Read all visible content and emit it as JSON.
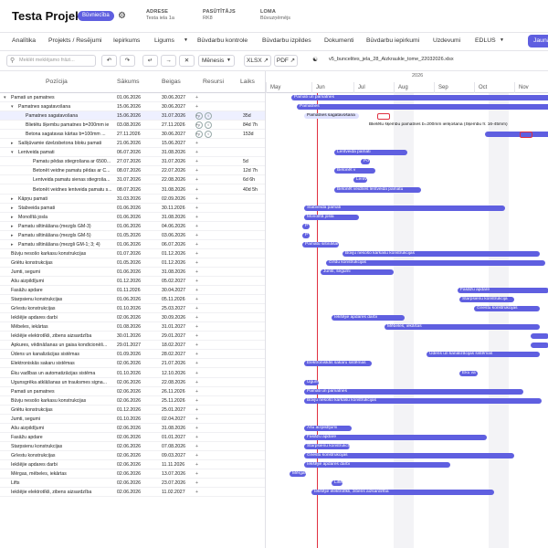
{
  "header": {
    "title": "Testa Projekts",
    "status": "Būvniecība",
    "adrese_label": "ADRESE",
    "adrese_value": "Testa iela 1a",
    "pasutitajs_label": "PASŪTĪTĀJS",
    "pasutitajs_value": "RK8",
    "loma_label": "LOMA",
    "loma_value": "Būvuzņēmējs"
  },
  "tabs": [
    "Analītika",
    "Projekts / Resējumi",
    "Iepirkums",
    "Ligums",
    "Būvdarbu kontrole",
    "Būvdarbu izpildes",
    "Dokumenti",
    "Būvdarbu iepirkumi",
    "Uzdevumi",
    "EDLUS",
    "Jaunās"
  ],
  "toolbar": {
    "search_placeholder": "Meklēt meklējamo frāzi...",
    "period": "Mēnesis",
    "xlsx": "XLSX",
    "pdf": "PDF",
    "file": "v5_buncelites_jela_28_Aizkraukle_tome_22032026.xlsx"
  },
  "columns": {
    "pozicija": "Pozīcija",
    "sakums": "Sākums",
    "beigas": "Beigas",
    "resursi": "Resursi",
    "laiks": "Laiks"
  },
  "timeline": {
    "year": "2026",
    "months": [
      "May",
      "Jun",
      "Jul",
      "Aug",
      "Sep",
      "Oct",
      "Nov"
    ]
  },
  "rows": [
    {
      "name": "Pamati un pamatnes",
      "start": "01.06.2026",
      "end": "30.06.2027",
      "res": "",
      "time": ""
    },
    {
      "name": "Pamatnes sagatavošana",
      "start": "15.06.2026",
      "end": "30.06.2027",
      "res": "",
      "time": ""
    },
    {
      "name": "Pamatnes sagatavošana",
      "start": "15.06.2026",
      "end": "31.07.2026",
      "res": "",
      "time": "35d"
    },
    {
      "name": "Blietētu šķembu pamatnes b=200mm ie",
      "start": "03.08.2026",
      "end": "27.11.2026",
      "res": "",
      "time": "84d 7h"
    },
    {
      "name": "Betona sagatavas kārtas b=100mm ...",
      "start": "27.11.2026",
      "end": "30.06.2027",
      "res": "",
      "time": "153d"
    },
    {
      "name": "Sašķūvamie dzelzsbetona bloku pamati",
      "start": "21.06.2026",
      "end": "15.06.2027",
      "res": "",
      "time": ""
    },
    {
      "name": "Lentveida pamati",
      "start": "06.07.2026",
      "end": "31.08.2026",
      "res": "",
      "time": ""
    },
    {
      "name": "Pamatu pēdas stiegrošana ar 6500...",
      "start": "27.07.2026",
      "end": "31.07.2026",
      "res": "",
      "time": "5d"
    },
    {
      "name": "Betonēt veidne pamatu pēdas ar C...",
      "start": "08.07.2026",
      "end": "22.07.2026",
      "res": "",
      "time": "12d 7h"
    },
    {
      "name": "Lentveida pamatu sienas stiegroša...",
      "start": "31.07.2026",
      "end": "22.08.2026",
      "res": "",
      "time": "6d 6h"
    },
    {
      "name": "Betonēt veidnes lentveida pamatu s...",
      "start": "08.07.2026",
      "end": "31.08.2026",
      "res": "",
      "time": "40d 5h"
    },
    {
      "name": "Kāpņu pamati",
      "start": "31.03.2026",
      "end": "02.09.2026",
      "res": "",
      "time": ""
    },
    {
      "name": "Stabveida pamati",
      "start": "01.06.2026",
      "end": "30.11.2026",
      "res": "",
      "time": ""
    },
    {
      "name": "Monolītā josla",
      "start": "01.06.2026",
      "end": "31.08.2026",
      "res": "",
      "time": ""
    },
    {
      "name": "Pamatu siltināšana (mezgls GM-3)",
      "start": "01.06.2026",
      "end": "04.06.2026",
      "res": "",
      "time": ""
    },
    {
      "name": "Pamatu siltināšana (mezgls GM-5)",
      "start": "01.05.2026",
      "end": "03.06.2026",
      "res": "",
      "time": ""
    },
    {
      "name": "Pamatu siltināšana (mezgli GM-1; 3; 4)",
      "start": "01.06.2026",
      "end": "06.07.2026",
      "res": "",
      "time": ""
    },
    {
      "name": "Būvju nesošo karkasu konstrukcijas",
      "start": "01.07.2026",
      "end": "01.12.2026",
      "res": "",
      "time": ""
    },
    {
      "name": "Griētu konstrukcijas",
      "start": "01.05.2026",
      "end": "01.12.2026",
      "res": "",
      "time": ""
    },
    {
      "name": "Jumti, segumi",
      "start": "01.06.2026",
      "end": "31.08.2026",
      "res": "",
      "time": ""
    },
    {
      "name": "Ašu aizpildījumi",
      "start": "01.12.2026",
      "end": "05.02.2027",
      "res": "",
      "time": ""
    },
    {
      "name": "Fasāžu apdare",
      "start": "01.11.2026",
      "end": "30.04.2027",
      "res": "",
      "time": ""
    },
    {
      "name": "Starpsienu konstrukcijas",
      "start": "01.06.2026",
      "end": "05.11.2026",
      "res": "",
      "time": ""
    },
    {
      "name": "Grīestu konstrukcijas",
      "start": "01.10.2026",
      "end": "25.03.2027",
      "res": "",
      "time": ""
    },
    {
      "name": "Iekšējie apdares darbi",
      "start": "02.06.2026",
      "end": "30.09.2026",
      "res": "",
      "time": ""
    },
    {
      "name": "Mēbeles, iekārtas",
      "start": "01.08.2026",
      "end": "31.01.2027",
      "res": "",
      "time": ""
    },
    {
      "name": "Iekšējie elektrotīkli, zibens aizsardzība",
      "start": "30.01.2026",
      "end": "29.01.2027",
      "res": "",
      "time": ""
    },
    {
      "name": "Apkures, vēdināšanas un gaisa kondicionēš...",
      "start": "29.01.2027",
      "end": "18.02.2027",
      "res": "",
      "time": ""
    },
    {
      "name": "Ūdens un kanalizācijas sistēmas",
      "start": "01.09.2026",
      "end": "28.02.2027",
      "res": "",
      "time": ""
    },
    {
      "name": "Elektroniskās sakaru sistēmas",
      "start": "02.06.2026",
      "end": "21.07.2026",
      "res": "",
      "time": ""
    },
    {
      "name": "Ēku vadības un automatizācijas sistēma",
      "start": "01.10.2026",
      "end": "12.10.2026",
      "res": "",
      "time": ""
    },
    {
      "name": "Ugunsgrēka atklāšanas un trauksmes signa...",
      "start": "02.06.2026",
      "end": "22.08.2026",
      "res": "",
      "time": ""
    },
    {
      "name": "Pamati un pamatnes",
      "start": "02.06.2026",
      "end": "26.11.2026",
      "res": "",
      "time": ""
    },
    {
      "name": "Būvju nesošo karkasu konstrukcijas",
      "start": "02.06.2026",
      "end": "25.11.2026",
      "res": "",
      "time": ""
    },
    {
      "name": "Griētu konstrukcijas",
      "start": "01.12.2026",
      "end": "25.01.2027",
      "res": "",
      "time": ""
    },
    {
      "name": "Jumti, segumi",
      "start": "01.10.2026",
      "end": "02.04.2027",
      "res": "",
      "time": ""
    },
    {
      "name": "Ašu aizpildījumi",
      "start": "02.06.2026",
      "end": "31.08.2026",
      "res": "",
      "time": ""
    },
    {
      "name": "Fasāžu apdare",
      "start": "02.06.2026",
      "end": "01.01.2027",
      "res": "",
      "time": ""
    },
    {
      "name": "Starpsienu konstrukcijas",
      "start": "02.06.2026",
      "end": "07.08.2026",
      "res": "",
      "time": ""
    },
    {
      "name": "Grīestu konstrukcijas",
      "start": "02.06.2026",
      "end": "09.03.2027",
      "res": "",
      "time": ""
    },
    {
      "name": "Iekšējie apdares darbi",
      "start": "02.06.2026",
      "end": "11.11.2026",
      "res": "",
      "time": ""
    },
    {
      "name": "Mērgas, mēbeles, iekārtas",
      "start": "02.06.2026",
      "end": "13.07.2026",
      "res": "",
      "time": ""
    },
    {
      "name": "Lifts",
      "start": "02.06.2026",
      "end": "23.07.2026",
      "res": "",
      "time": ""
    },
    {
      "name": "Iekšējie elektrotīkli, zibens aizsardzība",
      "start": "02.06.2026",
      "end": "11.02.2027",
      "res": "",
      "time": ""
    }
  ],
  "bars": [
    {
      "label": "Pamati un pamatnes"
    },
    {
      "label": "Pamatnes"
    },
    {
      "label": "Pamatnes sagatavošana"
    },
    {
      "label": "Blietētu šķembu pamatnes b=200mm ieriķošana (Šķembu fr. 16-45mm)"
    },
    {
      "label": ""
    },
    {
      "label": ""
    },
    {
      "label": "Lentveida pamati"
    },
    {
      "label": "Po"
    },
    {
      "label": "Betonēt v"
    },
    {
      "label": "Lentv"
    },
    {
      "label": "Betonēt veidnes lentveida pamatu"
    },
    {
      "label": ""
    },
    {
      "label": "Stabveida pamati"
    },
    {
      "label": "Monolītā josla"
    },
    {
      "label": "P"
    },
    {
      "label": "P"
    },
    {
      "label": "Pamatu siltināšana"
    },
    {
      "label": "Būvju nesošo karkasu konstrukcijas"
    },
    {
      "label": "Grīdu konstrukcijas"
    },
    {
      "label": "Jumti, segumi"
    },
    {
      "label": ""
    },
    {
      "label": "Fasāžu apdare"
    },
    {
      "label": "Starpsienu konstrukcija"
    },
    {
      "label": "Griestu konstrukcijas"
    },
    {
      "label": "Iekšējie apdares darbi"
    },
    {
      "label": "Mēbeles, iekārtas"
    },
    {
      "label": ""
    },
    {
      "label": ""
    },
    {
      "label": "Ūdens un kanalizācijas sistēmas"
    },
    {
      "label": "Elektroniskās sakaru sistēmas"
    },
    {
      "label": "Ēku va"
    },
    {
      "label": "Ugunsgrēka"
    },
    {
      "label": "Pamati un pamatnes"
    },
    {
      "label": "Būvju nesošo karkasu konstrukcijas"
    },
    {
      "label": ""
    },
    {
      "label": ""
    },
    {
      "label": "Ašu aizpildījumi"
    },
    {
      "label": "Fasāžu apdare"
    },
    {
      "label": "Starpsienu konstrukcijas"
    },
    {
      "label": "Griestu konstrukcijas"
    },
    {
      "label": "Iekšējie apdares darbi"
    },
    {
      "label": "Mērgas, mēb"
    },
    {
      "label": "Lifts"
    },
    {
      "label": "Iekšējie elektrotīkli, zibens aizsardzība"
    }
  ],
  "colors": {
    "accent": "#5f5fe0",
    "today": "#e03040"
  }
}
